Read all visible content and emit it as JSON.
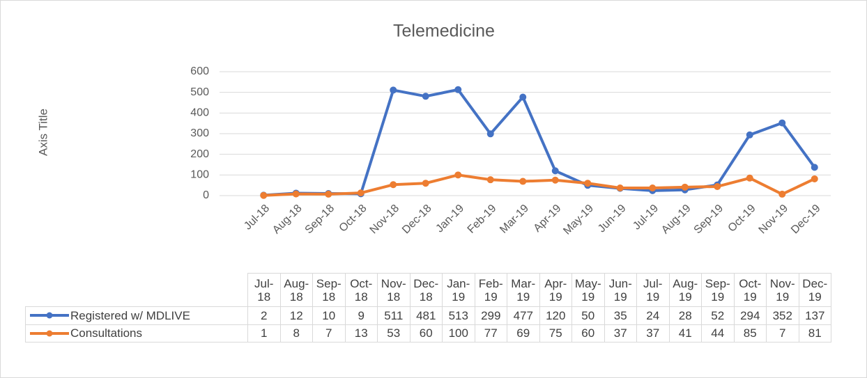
{
  "chart_data": {
    "type": "line",
    "title": "Telemedicine",
    "ylabel": "Axis Title",
    "categories": [
      "Jul-18",
      "Aug-18",
      "Sep-18",
      "Oct-18",
      "Nov-18",
      "Dec-18",
      "Jan-19",
      "Feb-19",
      "Mar-19",
      "Apr-19",
      "May-19",
      "Jun-19",
      "Jul-19",
      "Aug-19",
      "Sep-19",
      "Oct-19",
      "Nov-19",
      "Dec-19"
    ],
    "series": [
      {
        "name": "Registered w/ MDLIVE",
        "color": "#4472c4",
        "values": [
          2,
          12,
          10,
          9,
          511,
          481,
          513,
          299,
          477,
          120,
          50,
          35,
          24,
          28,
          52,
          294,
          352,
          137
        ]
      },
      {
        "name": "Consultations",
        "color": "#ed7d31",
        "values": [
          1,
          8,
          7,
          13,
          53,
          60,
          100,
          77,
          69,
          75,
          60,
          37,
          37,
          41,
          44,
          85,
          7,
          81
        ]
      }
    ],
    "ylim": [
      0,
      600
    ],
    "yticks": [
      0,
      100,
      200,
      300,
      400,
      500,
      600
    ],
    "grid": true,
    "data_table": true
  }
}
